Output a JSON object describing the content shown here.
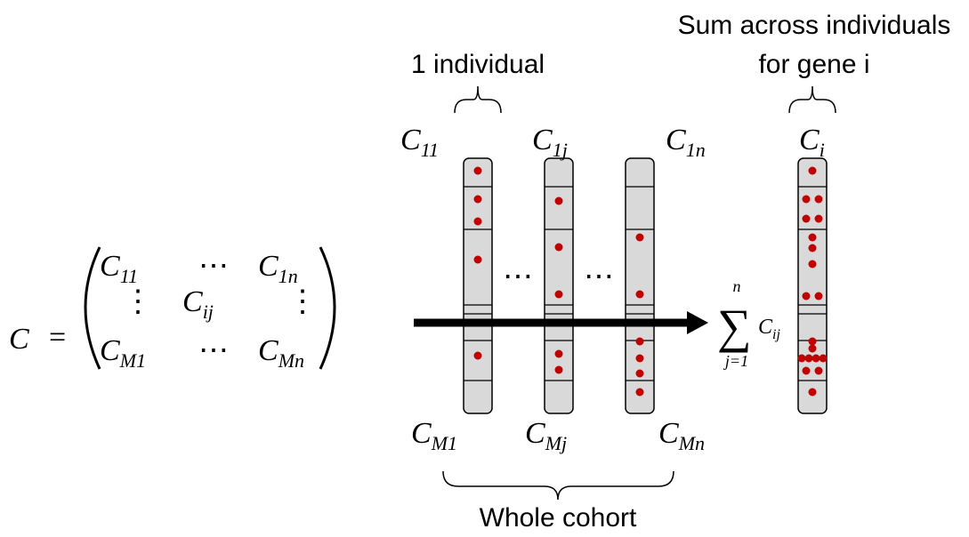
{
  "matrix": {
    "lhs": "C",
    "eq": "=",
    "rows": [
      [
        {
          "base": "C",
          "sub": "11"
        },
        "⋯",
        {
          "base": "C",
          "sub": "1n"
        }
      ],
      [
        "⋮",
        {
          "base": "C",
          "sub": "ij"
        },
        "⋮"
      ],
      [
        {
          "base": "C",
          "sub": "M1"
        },
        "⋯",
        {
          "base": "C",
          "sub": "Mn"
        }
      ]
    ]
  },
  "labels": {
    "one_individual": "1 individual",
    "sum_line1": "Sum across individuals",
    "sum_line2": "for gene i",
    "whole_cohort": "Whole cohort"
  },
  "columns": [
    {
      "top": {
        "base": "C",
        "sub": "11"
      },
      "bottom": {
        "base": "C",
        "sub": "M1"
      }
    },
    {
      "top": {
        "base": "C",
        "sub": "1j"
      },
      "bottom": {
        "base": "C",
        "sub": "Mj"
      }
    },
    {
      "top": {
        "base": "C",
        "sub": "1n"
      },
      "bottom": {
        "base": "C",
        "sub": "Mn"
      }
    }
  ],
  "ellipsis": "⋯",
  "sum": {
    "symbol": "∑",
    "upper": "n",
    "lower": "j=1",
    "term": {
      "base": "C",
      "sub": "ij"
    }
  },
  "total": {
    "base": "C",
    "sub": "i"
  }
}
